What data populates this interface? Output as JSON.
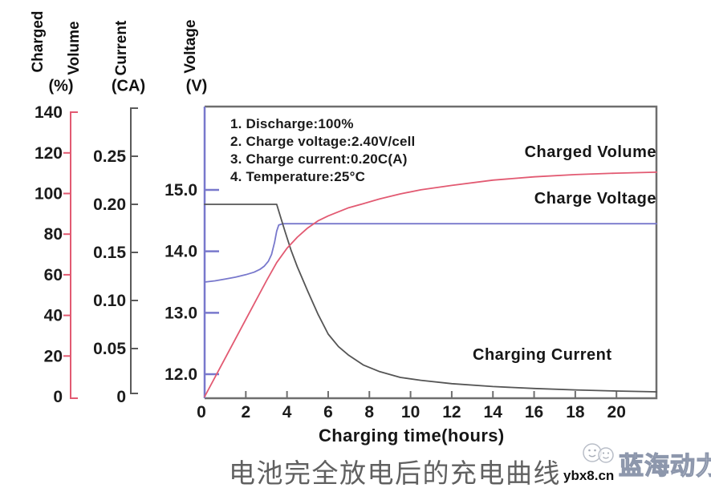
{
  "axis_titles": {
    "charged": "Charged",
    "volume": "Volume",
    "percent_unit": "(%)",
    "current": "Current",
    "current_unit": "(CA)",
    "voltage": "Voltage",
    "voltage_unit": "(V)"
  },
  "annotations": {
    "lines": [
      "1. Discharge:100%",
      "2. Charge voltage:2.40V/cell",
      "3. Charge current:0.20C(A)",
      "4. Temperature:25°C"
    ]
  },
  "curve_labels": {
    "charged_volume": "Charged Volume",
    "charge_voltage": "Charge Voltage",
    "charging_current": "Charging Current"
  },
  "x_axis_title": "Charging time(hours)",
  "footer_title_zh": "电池完全放电后的充电曲线",
  "watermark": {
    "site": "ybx8.cn",
    "brand": "蓝海动力"
  },
  "colors": {
    "volume_axis": "#e25a72",
    "voltage_axis": "#7878cc",
    "current_axis": "#5a5a5a",
    "box_border": "#6e6e6e",
    "tick_text": "#1b1b1b"
  },
  "chart_data": {
    "type": "line",
    "title": "电池完全放电后的充电曲线",
    "xlabel": "Charging time(hours)",
    "x_range": [
      0,
      22
    ],
    "x_ticks": [
      0,
      2,
      4,
      6,
      8,
      10,
      12,
      14,
      16,
      18,
      20
    ],
    "grid": false,
    "legend_position": "inline-labels",
    "axes": {
      "charged_volume": {
        "label": "Charged Volume (%)",
        "range": [
          0,
          140
        ],
        "ticks": [
          140,
          120,
          100,
          80,
          60,
          40,
          20,
          0
        ]
      },
      "current": {
        "label": "Current (CA)",
        "range": [
          0,
          0.3
        ],
        "tick_labels": [
          "0.25",
          "0.20",
          "0.15",
          "0.10",
          "0.05",
          "0"
        ],
        "tick_values": [
          0.25,
          0.2,
          0.15,
          0.1,
          0.05,
          0
        ]
      },
      "voltage": {
        "label": "Voltage (V)",
        "range": [
          11.6,
          16.35
        ],
        "tick_labels": [
          "15.0",
          "14.0",
          "13.0",
          "12.0"
        ],
        "tick_values": [
          15.0,
          14.0,
          13.0,
          12.0
        ]
      }
    },
    "conditions": [
      "Discharge:100%",
      "Charge voltage:2.40V/cell",
      "Charge current:0.20C(A)",
      "Temperature:25°C"
    ],
    "series": [
      {
        "name": "Charge Voltage",
        "axis": "voltage",
        "color": "#7878cc",
        "points": [
          [
            0,
            13.5
          ],
          [
            0.5,
            13.52
          ],
          [
            1,
            13.55
          ],
          [
            1.5,
            13.58
          ],
          [
            2,
            13.62
          ],
          [
            2.4,
            13.66
          ],
          [
            2.7,
            13.71
          ],
          [
            2.9,
            13.76
          ],
          [
            3.1,
            13.84
          ],
          [
            3.25,
            13.95
          ],
          [
            3.4,
            14.15
          ],
          [
            3.5,
            14.33
          ],
          [
            3.6,
            14.43
          ],
          [
            3.8,
            14.45
          ],
          [
            21.95,
            14.45
          ]
        ]
      },
      {
        "name": "Charging Current",
        "axis": "current",
        "color": "#555555",
        "points": [
          [
            0,
            0.2
          ],
          [
            3.5,
            0.2
          ],
          [
            3.7,
            0.186
          ],
          [
            3.9,
            0.172
          ],
          [
            4.2,
            0.152
          ],
          [
            4.5,
            0.135
          ],
          [
            5,
            0.11
          ],
          [
            5.5,
            0.086
          ],
          [
            6,
            0.065
          ],
          [
            6.5,
            0.052
          ],
          [
            7,
            0.043
          ],
          [
            7.7,
            0.033
          ],
          [
            8.5,
            0.026
          ],
          [
            9.5,
            0.02
          ],
          [
            10.5,
            0.017
          ],
          [
            12,
            0.0135
          ],
          [
            14,
            0.0105
          ],
          [
            16,
            0.0085
          ],
          [
            18,
            0.007
          ],
          [
            20,
            0.0058
          ],
          [
            21.95,
            0.005
          ]
        ]
      },
      {
        "name": "Charged Volume",
        "axis": "charged_volume",
        "color": "#e25a72",
        "points": [
          [
            0,
            0
          ],
          [
            1,
            19
          ],
          [
            2,
            38
          ],
          [
            3,
            57
          ],
          [
            3.5,
            66
          ],
          [
            4,
            73
          ],
          [
            4.5,
            78.5
          ],
          [
            5,
            83
          ],
          [
            5.5,
            86.5
          ],
          [
            6,
            89
          ],
          [
            6.5,
            91
          ],
          [
            7,
            93
          ],
          [
            7.7,
            95
          ],
          [
            8.5,
            97.3
          ],
          [
            9.5,
            99.8
          ],
          [
            10.5,
            101.8
          ],
          [
            12,
            104
          ],
          [
            14,
            106.6
          ],
          [
            16,
            108.2
          ],
          [
            18,
            109.3
          ],
          [
            20,
            110
          ],
          [
            21.95,
            110.5
          ]
        ]
      }
    ]
  }
}
